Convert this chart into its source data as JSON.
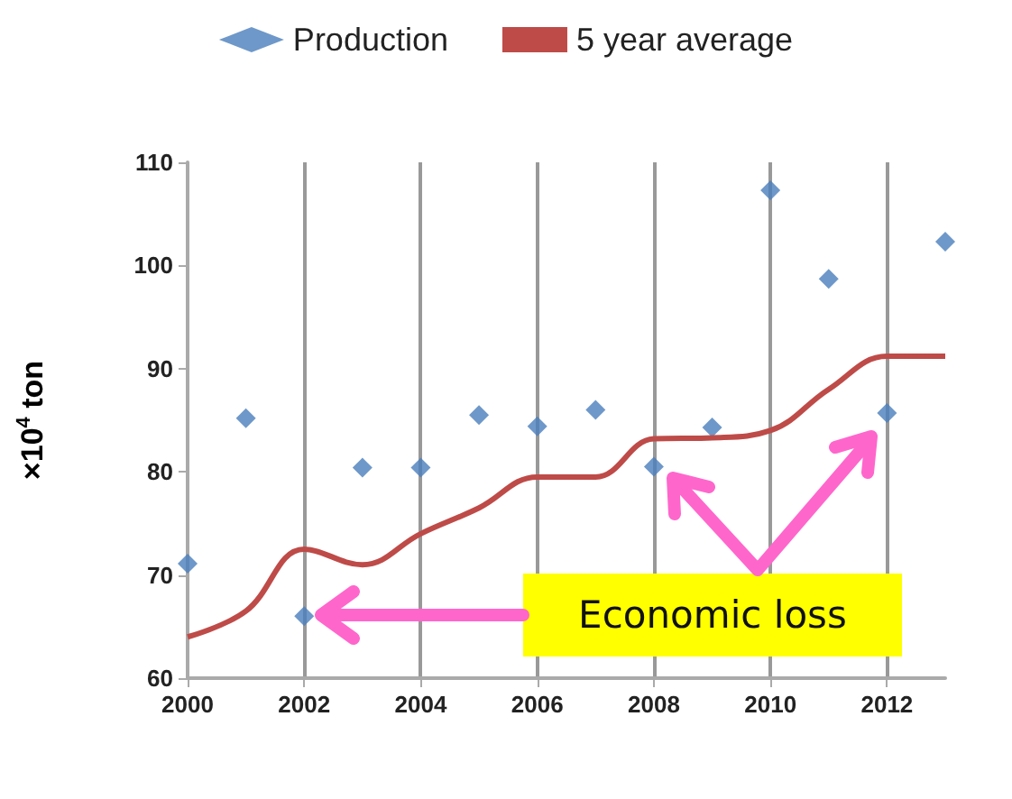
{
  "chart_data": {
    "type": "scatter",
    "ylabel": "×10$^{4}$ ton",
    "x": [
      2000,
      2001,
      2002,
      2003,
      2004,
      2005,
      2006,
      2007,
      2008,
      2009,
      2010,
      2011,
      2012,
      2013
    ],
    "series": [
      {
        "name": "Production",
        "color": "#4a7ebb",
        "marker": "diamond",
        "values": [
          71.1,
          85.2,
          66,
          80.4,
          80.4,
          85.5,
          84.4,
          86,
          80.5,
          84.3,
          107.3,
          98.7,
          85.7,
          102.3
        ]
      },
      {
        "name": "5 year average",
        "type": "line",
        "color": "#be4b48",
        "marker": "none",
        "line_style": "solid",
        "values": [
          64,
          66.5,
          72.5,
          71,
          74,
          76.5,
          79.5,
          79.5,
          83.2,
          83.3,
          84,
          88,
          91.2,
          91.2
        ]
      }
    ],
    "xlim": [
      2000,
      2013
    ],
    "xticks": [
      2000,
      2002,
      2004,
      2006,
      2008,
      2010,
      2012
    ],
    "ylim": [
      60,
      110
    ],
    "yticks": [
      60,
      70,
      80,
      90,
      100,
      110
    ],
    "grid": "x",
    "legend": "top",
    "annotations": [
      "Economic loss"
    ]
  }
}
